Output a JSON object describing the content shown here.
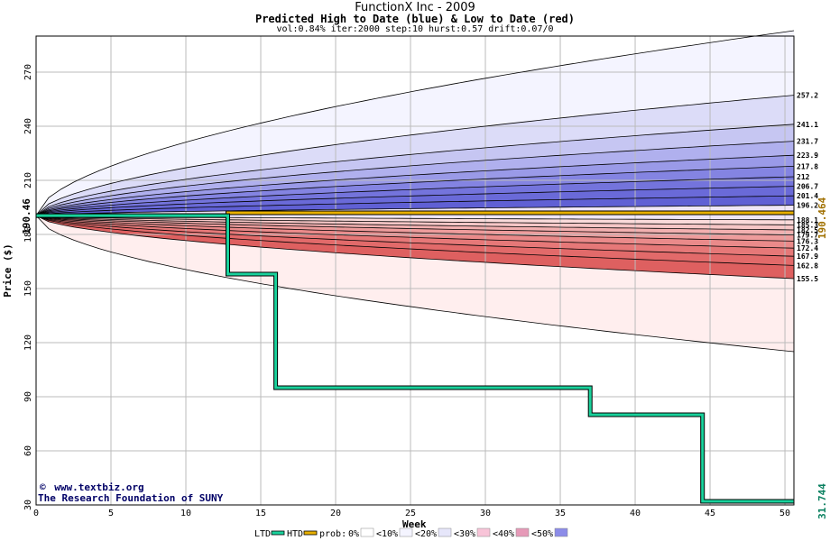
{
  "chart_data": {
    "type": "area",
    "title": "FunctionX Inc - 2009",
    "subtitle": "Predicted High to Date (blue) &  Low to Date (red)",
    "params": "vol:0.84% iter:2000 step:10 hurst:0.57 drift:0.07/0",
    "xlabel": "Week",
    "ylabel": "Price ($)",
    "xlim": [
      0,
      50.6
    ],
    "ylim": [
      30,
      290
    ],
    "xticks": [
      0,
      5,
      10,
      15,
      20,
      25,
      30,
      35,
      40,
      45,
      50
    ],
    "yticks": [
      30,
      60,
      90,
      120,
      150,
      180,
      210,
      240,
      270
    ],
    "grid": true,
    "start_price": 190.46,
    "start_price_label": "190.46",
    "right_value_label": "190.464",
    "bottom_value_label": "31.744",
    "credit_lines": [
      "www.textbiz.org",
      "The Research Foundation of SUNY"
    ],
    "high_band_end_labels": [
      "257.2",
      "241.1",
      "231.7",
      "223.9",
      "217.8",
      "212",
      "206.7",
      "201.4",
      "196.2"
    ],
    "high_band_end_values": [
      257.2,
      241.1,
      231.7,
      223.9,
      217.8,
      212,
      206.7,
      201.4,
      196.2
    ],
    "high_max_end": 293,
    "low_band_end_labels": [
      "188.1",
      "185.3",
      "182.5",
      "179.7",
      "176.3",
      "172.4",
      "167.9",
      "162.8",
      "155.5"
    ],
    "low_band_end_values": [
      188.1,
      185.3,
      182.5,
      179.7,
      176.3,
      172.4,
      167.9,
      162.8,
      155.5
    ],
    "low_min_end": 115,
    "band_fill_colors": [
      "#f4f4ff",
      "#dcdcf8",
      "#c6c6f2",
      "#b0b0ee",
      "#9a9ae8",
      "#8484e2",
      "#7474dc",
      "#6a6ad8",
      "#6060d4"
    ],
    "low_band_fill_colors": [
      "#ffeeee",
      "#fadada",
      "#f6c6c6",
      "#f2b0b0",
      "#ee9c9c",
      "#ea8a8a",
      "#e67878",
      "#e26a6a",
      "#de6060"
    ],
    "ltd_series": {
      "name": "LTD",
      "color": "#19d29c",
      "points": [
        [
          0,
          190.46
        ],
        [
          12.8,
          190.46
        ],
        [
          12.8,
          158
        ],
        [
          16,
          158
        ],
        [
          16,
          95
        ],
        [
          37,
          95
        ],
        [
          37,
          80
        ],
        [
          44.5,
          80
        ],
        [
          44.5,
          32
        ],
        [
          50.6,
          32
        ]
      ]
    },
    "htd_series": {
      "name": "HTD",
      "color": "#e8b000",
      "points": [
        [
          0,
          190.46
        ],
        [
          12.8,
          190.46
        ],
        [
          12.8,
          192
        ],
        [
          50.6,
          192
        ]
      ]
    },
    "legend": {
      "position": "bottom",
      "ltd_label": "LTD",
      "htd_label": "HTD",
      "prob_label": "prob:",
      "items": [
        {
          "label": "0%",
          "color": "#ffffff"
        },
        {
          "label": "<10%",
          "color": "#f4f4ff"
        },
        {
          "label": "<20%",
          "color": "#e6e6fa"
        },
        {
          "label": "<30%",
          "color": "#f8c4d8"
        },
        {
          "label": "<40%",
          "color": "#e69ab8"
        },
        {
          "label": "<50%",
          "color": "#8c8ce8"
        }
      ]
    }
  }
}
